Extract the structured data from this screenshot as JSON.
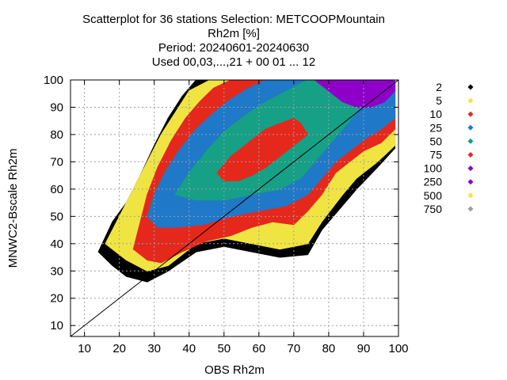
{
  "chart_data": {
    "type": "scatter",
    "title_lines": [
      "Scatterplot for   36 stations Selection: METCOOPMountain",
      "Rh2m [%]",
      "Period: 20240601-20240630",
      "Used 00,03,...,21 + 00 01 ... 12"
    ],
    "xlabel": "OBS Rh2m",
    "ylabel": "MNWC2-Bscale Rh2m",
    "xlim": [
      6,
      100
    ],
    "ylim": [
      6,
      100
    ],
    "xticks": [
      10,
      20,
      30,
      40,
      50,
      60,
      70,
      80,
      90,
      100
    ],
    "yticks": [
      10,
      20,
      30,
      40,
      50,
      60,
      70,
      80,
      90,
      100
    ],
    "grid": true,
    "reference_line": "y = x",
    "legend_placement": "right",
    "legend": [
      {
        "label": "2",
        "color": "#000000"
      },
      {
        "label": "5",
        "color": "#f0e442"
      },
      {
        "label": "10",
        "color": "#e5281c"
      },
      {
        "label": "25",
        "color": "#1f78c8"
      },
      {
        "label": "50",
        "color": "#16a085"
      },
      {
        "label": "75",
        "color": "#e5281c"
      },
      {
        "label": "100",
        "color": "#8e00c8"
      },
      {
        "label": "250",
        "color": "#8e00c8"
      },
      {
        "label": "500",
        "color": "#f0e442"
      },
      {
        "label": "750",
        "color": "#a0a0a0"
      }
    ],
    "density_layers": [
      {
        "count_label": "2",
        "color": "#000000",
        "outline": [
          [
            14,
            37
          ],
          [
            18,
            48
          ],
          [
            22,
            55
          ],
          [
            26,
            65
          ],
          [
            30,
            76
          ],
          [
            34,
            86
          ],
          [
            38,
            94
          ],
          [
            42,
            100
          ],
          [
            60,
            100
          ],
          [
            99,
            99
          ],
          [
            99,
            75
          ],
          [
            94,
            68
          ],
          [
            88,
            60
          ],
          [
            84,
            54
          ],
          [
            78,
            45
          ],
          [
            74,
            36
          ],
          [
            66,
            35
          ],
          [
            58,
            37
          ],
          [
            50,
            39
          ],
          [
            42,
            37
          ],
          [
            34,
            30
          ],
          [
            28,
            26
          ],
          [
            22,
            28
          ],
          [
            18,
            32
          ]
        ]
      },
      {
        "count_label": "5",
        "color": "#f0e442",
        "outline": [
          [
            16,
            40
          ],
          [
            20,
            50
          ],
          [
            24,
            60
          ],
          [
            28,
            70
          ],
          [
            32,
            80
          ],
          [
            36,
            88
          ],
          [
            40,
            96
          ],
          [
            46,
            100
          ],
          [
            99,
            100
          ],
          [
            99,
            76
          ],
          [
            94,
            70
          ],
          [
            88,
            64
          ],
          [
            84,
            58
          ],
          [
            78,
            48
          ],
          [
            74,
            40
          ],
          [
            66,
            38
          ],
          [
            58,
            40
          ],
          [
            50,
            42
          ],
          [
            42,
            40
          ],
          [
            34,
            32
          ],
          [
            28,
            30
          ],
          [
            22,
            34
          ]
        ]
      },
      {
        "count_label": "10",
        "color": "#e5281c",
        "outline": [
          [
            24,
            38
          ],
          [
            26,
            48
          ],
          [
            28,
            58
          ],
          [
            31,
            68
          ],
          [
            35,
            78
          ],
          [
            39,
            86
          ],
          [
            43,
            92
          ],
          [
            47,
            97
          ],
          [
            52,
            100
          ],
          [
            99,
            100
          ],
          [
            99,
            82
          ],
          [
            95,
            77
          ],
          [
            90,
            74
          ],
          [
            86,
            70
          ],
          [
            82,
            66
          ],
          [
            78,
            58
          ],
          [
            74,
            52
          ],
          [
            70,
            47
          ],
          [
            64,
            48
          ],
          [
            58,
            46
          ],
          [
            52,
            43
          ],
          [
            45,
            41
          ],
          [
            38,
            37
          ],
          [
            32,
            33
          ],
          [
            28,
            34
          ]
        ]
      },
      {
        "count_label": "25",
        "color": "#1f78c8",
        "outline": [
          [
            28,
            50
          ],
          [
            30,
            58
          ],
          [
            33,
            66
          ],
          [
            37,
            74
          ],
          [
            42,
            82
          ],
          [
            47,
            88
          ],
          [
            52,
            93
          ],
          [
            57,
            97
          ],
          [
            62,
            100
          ],
          [
            99,
            100
          ],
          [
            99,
            86
          ],
          [
            95,
            82
          ],
          [
            90,
            78
          ],
          [
            86,
            74
          ],
          [
            82,
            70
          ],
          [
            78,
            64
          ],
          [
            74,
            58
          ],
          [
            68,
            54
          ],
          [
            60,
            52
          ],
          [
            52,
            50
          ],
          [
            44,
            47
          ],
          [
            36,
            46
          ],
          [
            31,
            46
          ]
        ]
      },
      {
        "count_label": "50",
        "color": "#16a085",
        "outline": [
          [
            36,
            58
          ],
          [
            40,
            66
          ],
          [
            45,
            74
          ],
          [
            50,
            81
          ],
          [
            56,
            87
          ],
          [
            62,
            92
          ],
          [
            68,
            96
          ],
          [
            74,
            100
          ],
          [
            86,
            100
          ],
          [
            90,
            94
          ],
          [
            88,
            88
          ],
          [
            84,
            82
          ],
          [
            80,
            76
          ],
          [
            76,
            70
          ],
          [
            72,
            64
          ],
          [
            66,
            60
          ],
          [
            58,
            58
          ],
          [
            50,
            56
          ],
          [
            42,
            56
          ]
        ]
      },
      {
        "count_label": "75",
        "color": "#e5281c",
        "outline": [
          [
            48,
            66
          ],
          [
            52,
            72
          ],
          [
            56,
            76
          ],
          [
            60,
            80
          ],
          [
            62,
            82
          ],
          [
            66,
            84
          ],
          [
            70,
            86
          ],
          [
            72,
            84
          ],
          [
            74,
            80
          ],
          [
            70,
            76
          ],
          [
            66,
            72
          ],
          [
            62,
            68
          ],
          [
            58,
            65
          ],
          [
            54,
            63
          ],
          [
            50,
            63
          ]
        ]
      },
      {
        "count_label": "100",
        "color": "#8e00c8",
        "outline": [
          [
            76,
            100
          ],
          [
            80,
            96
          ],
          [
            84,
            92
          ],
          [
            88,
            90
          ],
          [
            92,
            90
          ],
          [
            96,
            92
          ],
          [
            99,
            96
          ],
          [
            99,
            100
          ]
        ]
      }
    ]
  }
}
